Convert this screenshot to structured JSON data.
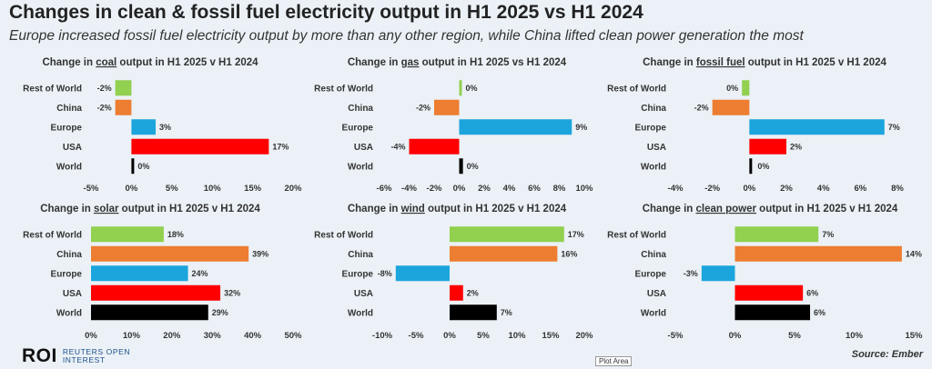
{
  "title": "Changes in clean & fossil fuel electricity output in H1 2025 vs H1 2024",
  "subtitle": "Europe increased fossil fuel electricity output by more than any other region, while China lifted clean power generation the most",
  "logo": {
    "mark": "ROI",
    "line1": "REUTERS OPEN",
    "line2": "INTEREST"
  },
  "source": "Source: Ember",
  "tooltip": "Plot Area",
  "colors": {
    "Rest of World": "#92d050",
    "China": "#ed7d31",
    "Europe": "#1ca5dc",
    "USA": "#ff0000",
    "World": "#000000"
  },
  "chart_data": [
    {
      "type": "bar",
      "orientation": "horizontal",
      "title_prefix": "Change in ",
      "title_key": "coal",
      "title_suffix": " output in H1 2025 v H1 2024",
      "categories": [
        "Rest of World",
        "China",
        "Europe",
        "USA",
        "World"
      ],
      "values": [
        -2,
        -2,
        3,
        17,
        0
      ],
      "labels": [
        "-2%",
        "-2%",
        "3%",
        "17%",
        "0%"
      ],
      "xlim": [
        -5,
        20
      ],
      "ticks": [
        -5,
        0,
        5,
        10,
        15,
        20
      ],
      "tick_labels": [
        "-5%",
        "0%",
        "5%",
        "10%",
        "15%",
        "20%"
      ]
    },
    {
      "type": "bar",
      "orientation": "horizontal",
      "title_prefix": "Change in ",
      "title_key": "gas",
      "title_suffix": " output in H1 2025 vs H1 2024",
      "categories": [
        "Rest of World",
        "China",
        "Europe",
        "USA",
        "World"
      ],
      "values": [
        0,
        -2,
        9,
        -4,
        0.3
      ],
      "labels": [
        "0%",
        "-2%",
        "9%",
        "-4%",
        "0%"
      ],
      "xlim": [
        -6,
        10
      ],
      "ticks": [
        -6,
        -4,
        -2,
        0,
        2,
        4,
        6,
        8,
        10
      ],
      "tick_labels": [
        "-6%",
        "-4%",
        "-2%",
        "0%",
        "2%",
        "4%",
        "6%",
        "8%",
        "10%"
      ]
    },
    {
      "type": "bar",
      "orientation": "horizontal",
      "title_prefix": "Change in ",
      "title_key": "fossil fuel",
      "title_suffix": " output in H1 2025 v H1 2024",
      "categories": [
        "Rest of World",
        "China",
        "Europe",
        "USA",
        "World"
      ],
      "values": [
        -0.4,
        -2,
        7.3,
        2,
        0.1
      ],
      "labels": [
        "0%",
        "-2%",
        "7%",
        "2%",
        "0%"
      ],
      "xlim": [
        -4,
        8
      ],
      "ticks": [
        -4,
        -2,
        0,
        2,
        4,
        6,
        8
      ],
      "tick_labels": [
        "-4%",
        "-2%",
        "0%",
        "2%",
        "4%",
        "6%",
        "8%"
      ]
    },
    {
      "type": "bar",
      "orientation": "horizontal",
      "title_prefix": "Change in ",
      "title_key": "solar",
      "title_suffix": " output in H1 2025 v H1 2024",
      "categories": [
        "Rest of World",
        "China",
        "Europe",
        "USA",
        "World"
      ],
      "values": [
        18,
        39,
        24,
        32,
        29
      ],
      "labels": [
        "18%",
        "39%",
        "24%",
        "32%",
        "29%"
      ],
      "xlim": [
        0,
        50
      ],
      "ticks": [
        0,
        10,
        20,
        30,
        40,
        50
      ],
      "tick_labels": [
        "0%",
        "10%",
        "20%",
        "30%",
        "40%",
        "50%"
      ]
    },
    {
      "type": "bar",
      "orientation": "horizontal",
      "title_prefix": "Change in ",
      "title_key": "wind",
      "title_suffix": " output in H1 2025 v H1 2024",
      "categories": [
        "Rest of World",
        "China",
        "Europe",
        "USA",
        "World"
      ],
      "values": [
        17,
        16,
        -8,
        2,
        7
      ],
      "labels": [
        "17%",
        "16%",
        "-8%",
        "2%",
        "7%"
      ],
      "xlim": [
        -10,
        20
      ],
      "ticks": [
        -10,
        -5,
        0,
        5,
        10,
        15,
        20
      ],
      "tick_labels": [
        "-10%",
        "-5%",
        "0%",
        "5%",
        "10%",
        "15%",
        "20%"
      ]
    },
    {
      "type": "bar",
      "orientation": "horizontal",
      "title_prefix": "Change in ",
      "title_key": "clean power",
      "title_suffix": " output in H1 2025 v H1 2024",
      "categories": [
        "Rest of World",
        "China",
        "Europe",
        "USA",
        "World"
      ],
      "values": [
        7,
        14,
        -2.8,
        5.7,
        6.3
      ],
      "labels": [
        "7%",
        "14%",
        "-3%",
        "6%",
        "6%"
      ],
      "xlim": [
        -5,
        15
      ],
      "ticks": [
        -5,
        0,
        5,
        10,
        15
      ],
      "tick_labels": [
        "-5%",
        "0%",
        "5%",
        "10%",
        "15%"
      ]
    }
  ]
}
